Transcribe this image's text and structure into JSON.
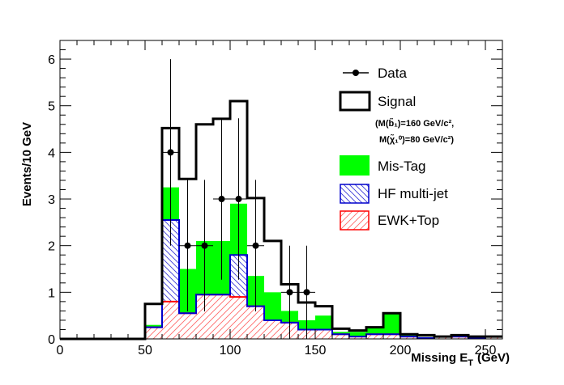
{
  "chart_data": {
    "type": "bar",
    "style": "stacked-step-histogram",
    "xlabel": "Missing E_T (GeV)",
    "xlabel_main": "Missing E",
    "xlabel_sub": "T",
    "xlabel_unit": "(GeV)",
    "ylabel": "Events/10 GeV",
    "xlim": [
      0,
      260
    ],
    "ylim": [
      0,
      6.4
    ],
    "bin_width": 10,
    "x_ticks": [
      0,
      50,
      100,
      150,
      200,
      250
    ],
    "y_ticks": [
      0,
      1,
      2,
      3,
      4,
      5,
      6
    ],
    "grid": false,
    "legend_position": "top-right",
    "bins": [
      0,
      10,
      20,
      30,
      40,
      50,
      60,
      70,
      80,
      90,
      100,
      110,
      120,
      130,
      140,
      150,
      160,
      170,
      180,
      190,
      200,
      210,
      220,
      230,
      240,
      250
    ],
    "series": [
      {
        "name": "EWK+Top",
        "color": "#ff0000",
        "fill": "hatch-diagonal-red",
        "values": [
          0,
          0,
          0,
          0,
          0,
          0.25,
          0.8,
          0.55,
          0.95,
          0.95,
          0.9,
          0.7,
          0.4,
          0.35,
          0.2,
          0.2,
          0.1,
          0.05,
          0.1,
          0.1,
          0.05,
          0.02,
          0.05,
          0.05,
          0.02,
          0.05
        ]
      },
      {
        "name": "HF multi-jet",
        "color": "#0000cc",
        "fill": "hatch-diagonal-blue",
        "values": [
          0,
          0,
          0,
          0,
          0,
          0,
          1.75,
          0,
          0,
          0,
          0.9,
          0,
          0,
          0,
          0,
          0,
          0,
          0,
          0,
          0,
          0,
          0,
          0,
          0,
          0,
          0
        ]
      },
      {
        "name": "Mis-Tag",
        "color": "#00ff00",
        "fill": "solid-green",
        "values": [
          0,
          0,
          0,
          0,
          0,
          0.05,
          0.7,
          0.95,
          1.15,
          1.15,
          1.1,
          0.65,
          0.6,
          0.25,
          0.2,
          0.3,
          0.05,
          0.1,
          0.15,
          0.45,
          0.05,
          0.02,
          0.0,
          0.0,
          0.0,
          0.0
        ]
      }
    ],
    "signal": {
      "name": "Signal",
      "color": "#000000",
      "values": [
        0,
        0,
        0,
        0,
        0,
        0.75,
        4.52,
        3.43,
        4.6,
        4.72,
        5.1,
        3.02,
        2.1,
        1.17,
        0.78,
        0.7,
        0.22,
        0.18,
        0.25,
        0.55,
        0.1,
        0.08,
        0.05,
        0.08,
        0.05,
        0.05
      ]
    },
    "data_points": {
      "name": "Data",
      "x": [
        65,
        75,
        85,
        95,
        105,
        115,
        135,
        145
      ],
      "y": [
        4,
        2,
        2,
        3,
        3,
        2,
        1,
        1
      ],
      "err": [
        2.0,
        1.41,
        1.41,
        1.73,
        1.73,
        1.41,
        1.0,
        1.0
      ]
    },
    "legend": {
      "data": "Data",
      "signal": "Signal",
      "signal_note_1": "(M(b̃₁)=160 GeV/c²,",
      "signal_note_2": "M(χ̃₁⁰)=80 GeV/c²)",
      "mistag": "Mis-Tag",
      "hf": "HF multi-jet",
      "ewk": "EWK+Top"
    }
  }
}
